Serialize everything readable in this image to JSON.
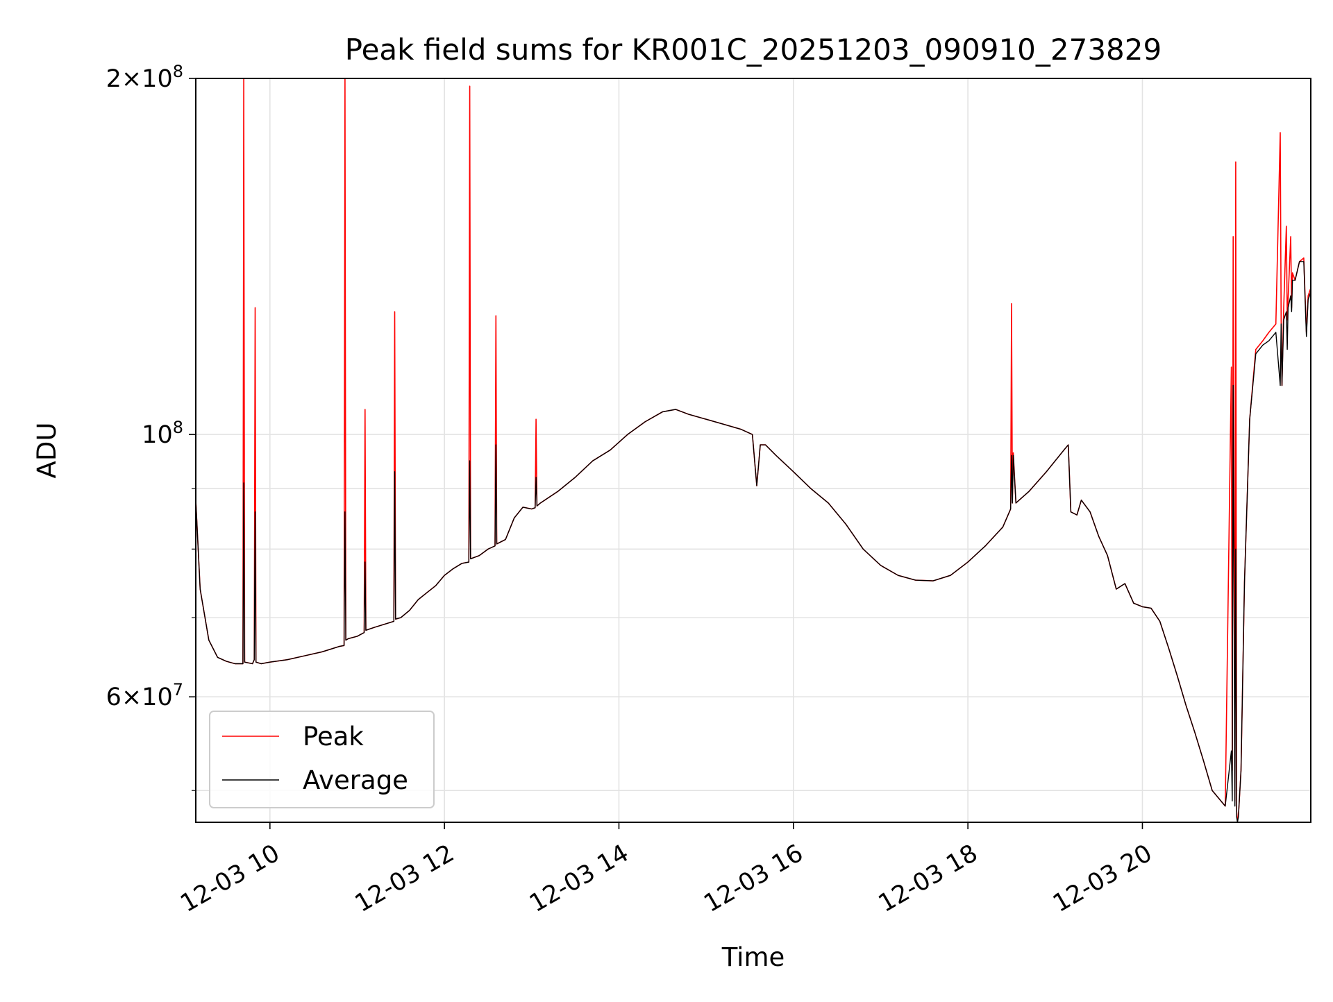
{
  "chart_data": {
    "type": "line",
    "title": "Peak field sums for KR001C_20251203_090910_273829",
    "xlabel": "Time",
    "ylabel": "ADU",
    "yscale": "log",
    "xlim": [
      9.15,
      21.93
    ],
    "ylim": [
      47000000,
      200000000
    ],
    "grid": true,
    "legend_position": "lower-left",
    "x_ticks": [
      {
        "value": 10,
        "label": "12-03 10"
      },
      {
        "value": 12,
        "label": "12-03 12"
      },
      {
        "value": 14,
        "label": "12-03 14"
      },
      {
        "value": 16,
        "label": "12-03 16"
      },
      {
        "value": 18,
        "label": "12-03 18"
      },
      {
        "value": 20,
        "label": "12-03 20"
      }
    ],
    "y_ticks": [
      {
        "value": 200000000,
        "base": "2×10",
        "exp": "8"
      },
      {
        "value": 100000000,
        "base": "10",
        "exp": "8"
      },
      {
        "value": 60000000,
        "base": "6×10",
        "exp": "7"
      }
    ],
    "y_minor_ticks": [
      50000000,
      70000000,
      80000000,
      90000000
    ],
    "series": [
      {
        "name": "Peak",
        "color": "#ff0000",
        "x": [
          9.15,
          9.2,
          9.3,
          9.4,
          9.5,
          9.6,
          9.69,
          9.7,
          9.71,
          9.8,
          9.82,
          9.83,
          9.84,
          9.9,
          10.0,
          10.2,
          10.4,
          10.6,
          10.8,
          10.85,
          10.86,
          10.87,
          10.9,
          11.0,
          11.08,
          11.09,
          11.1,
          11.2,
          11.42,
          11.43,
          11.44,
          11.5,
          11.6,
          11.7,
          11.8,
          11.9,
          12.0,
          12.1,
          12.2,
          12.28,
          12.29,
          12.3,
          12.4,
          12.5,
          12.58,
          12.59,
          12.6,
          12.7,
          12.8,
          12.9,
          13.0,
          13.04,
          13.05,
          13.06,
          13.1,
          13.3,
          13.5,
          13.7,
          13.9,
          14.1,
          14.3,
          14.5,
          14.65,
          14.8,
          15.0,
          15.2,
          15.4,
          15.53,
          15.58,
          15.62,
          15.68,
          15.8,
          16.0,
          16.2,
          16.4,
          16.6,
          16.8,
          17.0,
          17.2,
          17.4,
          17.6,
          17.8,
          18.0,
          18.2,
          18.4,
          18.49,
          18.5,
          18.51,
          18.52,
          18.55,
          18.7,
          18.9,
          19.1,
          19.15,
          19.18,
          19.25,
          19.3,
          19.4,
          19.5,
          19.6,
          19.7,
          19.8,
          19.9,
          20.0,
          20.1,
          20.2,
          20.3,
          20.4,
          20.5,
          20.6,
          20.7,
          20.8,
          20.95,
          21.02,
          21.03,
          21.04,
          21.06,
          21.07,
          21.08,
          21.09,
          21.1,
          21.13,
          21.17,
          21.23,
          21.3,
          21.38,
          21.45,
          21.53,
          21.58,
          21.59,
          21.6,
          21.62,
          21.65,
          21.66,
          21.67,
          21.7,
          21.71,
          21.72,
          21.75,
          21.8,
          21.85,
          21.88,
          21.9,
          21.93
        ],
        "y": [
          88000000,
          74000000,
          67000000,
          64800000,
          64300000,
          64000000,
          64000000,
          200000000,
          64200000,
          64000000,
          64500000,
          128000000,
          64200000,
          64000000,
          64200000,
          64500000,
          65000000,
          65500000,
          66200000,
          66300000,
          200000000,
          67000000,
          67200000,
          67500000,
          68000000,
          105000000,
          68300000,
          68700000,
          69500000,
          127000000,
          69800000,
          70000000,
          71000000,
          72500000,
          73500000,
          74500000,
          76000000,
          77000000,
          77800000,
          78000000,
          197000000,
          78500000,
          79000000,
          80000000,
          80500000,
          126000000,
          80800000,
          81500000,
          85000000,
          86800000,
          86500000,
          86700000,
          103000000,
          87000000,
          87500000,
          89500000,
          92000000,
          95000000,
          97000000,
          100000000,
          102500000,
          104500000,
          105000000,
          104000000,
          103000000,
          102000000,
          101000000,
          100000000,
          90500000,
          98000000,
          98000000,
          96000000,
          93000000,
          90000000,
          87500000,
          84000000,
          80000000,
          77500000,
          76000000,
          75300000,
          75200000,
          76000000,
          78000000,
          80500000,
          83500000,
          86500000,
          129000000,
          87500000,
          96500000,
          87500000,
          89500000,
          93000000,
          97000000,
          98000000,
          86000000,
          85500000,
          88000000,
          86000000,
          82000000,
          79000000,
          74000000,
          74800000,
          72000000,
          71500000,
          71300000,
          69500000,
          66000000,
          62500000,
          59000000,
          56000000,
          53000000,
          50000000,
          48500000,
          114000000,
          52000000,
          147000000,
          49000000,
          170000000,
          48000000,
          47200000,
          47500000,
          52000000,
          75000000,
          103000000,
          118000000,
          120000000,
          122000000,
          124000000,
          180000000,
          125000000,
          110000000,
          128000000,
          150000000,
          125000000,
          130000000,
          147000000,
          128000000,
          137000000,
          135000000,
          140000000,
          141000000,
          122000000,
          131000000,
          133000000
        ]
      },
      {
        "name": "Average",
        "color": "#000000",
        "x": [
          9.15,
          9.2,
          9.3,
          9.4,
          9.5,
          9.6,
          9.69,
          9.7,
          9.71,
          9.8,
          9.82,
          9.83,
          9.84,
          9.9,
          10.0,
          10.2,
          10.4,
          10.6,
          10.8,
          10.85,
          10.86,
          10.87,
          10.9,
          11.0,
          11.08,
          11.09,
          11.1,
          11.2,
          11.42,
          11.43,
          11.44,
          11.5,
          11.6,
          11.7,
          11.8,
          11.9,
          12.0,
          12.1,
          12.2,
          12.28,
          12.29,
          12.3,
          12.4,
          12.5,
          12.58,
          12.59,
          12.6,
          12.7,
          12.8,
          12.9,
          13.0,
          13.04,
          13.05,
          13.06,
          13.1,
          13.3,
          13.5,
          13.7,
          13.9,
          14.1,
          14.3,
          14.5,
          14.65,
          14.8,
          15.0,
          15.2,
          15.4,
          15.53,
          15.58,
          15.62,
          15.68,
          15.8,
          16.0,
          16.2,
          16.4,
          16.6,
          16.8,
          17.0,
          17.2,
          17.4,
          17.6,
          17.8,
          18.0,
          18.2,
          18.4,
          18.49,
          18.5,
          18.51,
          18.52,
          18.55,
          18.7,
          18.9,
          19.1,
          19.15,
          19.18,
          19.25,
          19.3,
          19.4,
          19.5,
          19.6,
          19.7,
          19.8,
          19.9,
          20.0,
          20.1,
          20.2,
          20.3,
          20.4,
          20.5,
          20.6,
          20.7,
          20.8,
          20.95,
          21.02,
          21.03,
          21.04,
          21.06,
          21.07,
          21.08,
          21.09,
          21.1,
          21.13,
          21.17,
          21.23,
          21.3,
          21.38,
          21.45,
          21.53,
          21.58,
          21.59,
          21.6,
          21.62,
          21.65,
          21.66,
          21.67,
          21.7,
          21.71,
          21.72,
          21.75,
          21.8,
          21.85,
          21.88,
          21.9,
          21.93
        ],
        "y": [
          88000000,
          74000000,
          67000000,
          64800000,
          64300000,
          64000000,
          64000000,
          91000000,
          64200000,
          64000000,
          64500000,
          86000000,
          64200000,
          64000000,
          64200000,
          64500000,
          65000000,
          65500000,
          66200000,
          66300000,
          86000000,
          67000000,
          67200000,
          67500000,
          68000000,
          78000000,
          68300000,
          68700000,
          69500000,
          93000000,
          69800000,
          70000000,
          71000000,
          72500000,
          73500000,
          74500000,
          76000000,
          77000000,
          77800000,
          78000000,
          95000000,
          78500000,
          79000000,
          80000000,
          80500000,
          98000000,
          80800000,
          81500000,
          85000000,
          86800000,
          86500000,
          86700000,
          92000000,
          87000000,
          87500000,
          89500000,
          92000000,
          95000000,
          97000000,
          100000000,
          102500000,
          104500000,
          105000000,
          104000000,
          103000000,
          102000000,
          101000000,
          100000000,
          90500000,
          98000000,
          98000000,
          96000000,
          93000000,
          90000000,
          87500000,
          84000000,
          80000000,
          77500000,
          76000000,
          75300000,
          75200000,
          76000000,
          78000000,
          80500000,
          83500000,
          86500000,
          96000000,
          87500000,
          96000000,
          87500000,
          89500000,
          93000000,
          97000000,
          98000000,
          86000000,
          85500000,
          88000000,
          86000000,
          82000000,
          79000000,
          74000000,
          74800000,
          72000000,
          71500000,
          71300000,
          69500000,
          66000000,
          62500000,
          59000000,
          56000000,
          53000000,
          50000000,
          48500000,
          54000000,
          49000000,
          110000000,
          48500000,
          80000000,
          47500000,
          47000000,
          47500000,
          52000000,
          75000000,
          103000000,
          117000000,
          119000000,
          120000000,
          122000000,
          110000000,
          124000000,
          110000000,
          125000000,
          127000000,
          118000000,
          128000000,
          131000000,
          127000000,
          135000000,
          135000000,
          140000000,
          140000000,
          121000000,
          130000000,
          132000000
        ]
      }
    ]
  }
}
